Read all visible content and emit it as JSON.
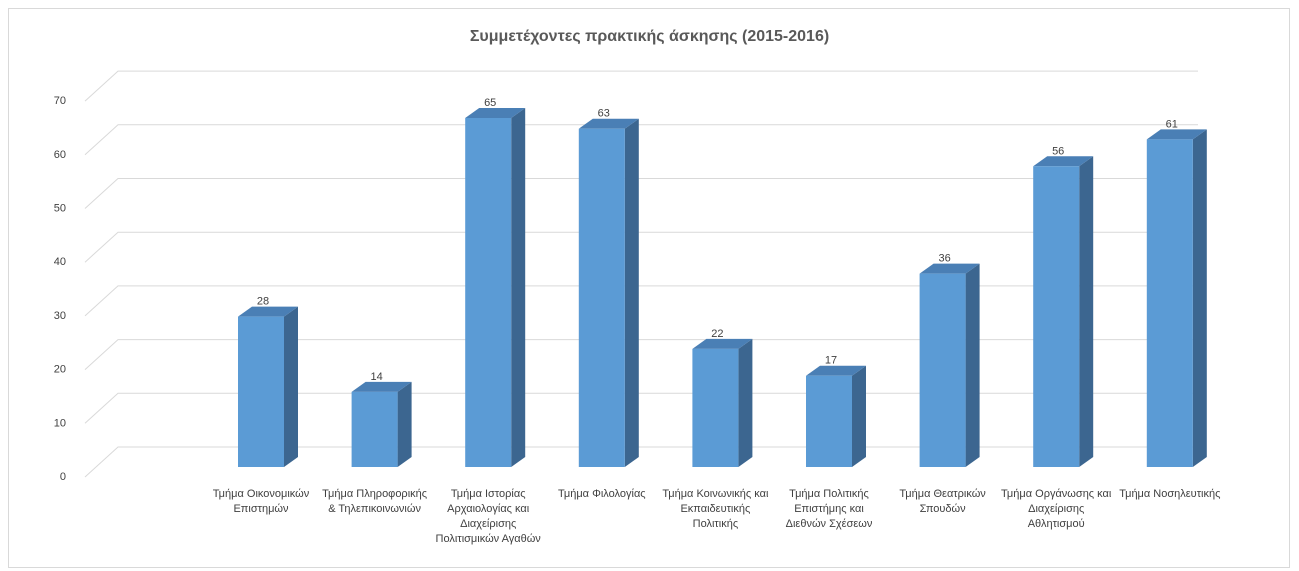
{
  "chart_data": {
    "type": "bar3d",
    "title": "Συμμετέχοντες πρακτικής άσκησης (2015-2016)",
    "categories": [
      "Τμήμα Οικονομικών Επιστημών",
      "Τμήμα Πληροφορικής & Τηλεπικοινωνιών",
      "Τμήμα Ιστορίας Αρχαιολογίας και Διαχείρισης Πολιτισμικών Αγαθών",
      "Τμήμα Φιλολογίας",
      "Τμήμα Κοινωνικής και Εκπαιδευτικής Πολιτικής",
      "Τμήμα Πολιτικής Επιστήμης και Διεθνών Σχέσεων",
      "Τμήμα Θεατρικών Σπουδών",
      "Τμήμα Οργάνωσης και Διαχείρισης Αθλητισμού",
      "Τμήμα Νοσηλευτικής"
    ],
    "values": [
      28,
      14,
      65,
      63,
      22,
      17,
      36,
      56,
      61
    ],
    "color": "#5b9bd5",
    "ylim": [
      0,
      70
    ],
    "yticks": [
      0,
      10,
      20,
      30,
      40,
      50,
      60,
      70
    ],
    "grid": true
  }
}
